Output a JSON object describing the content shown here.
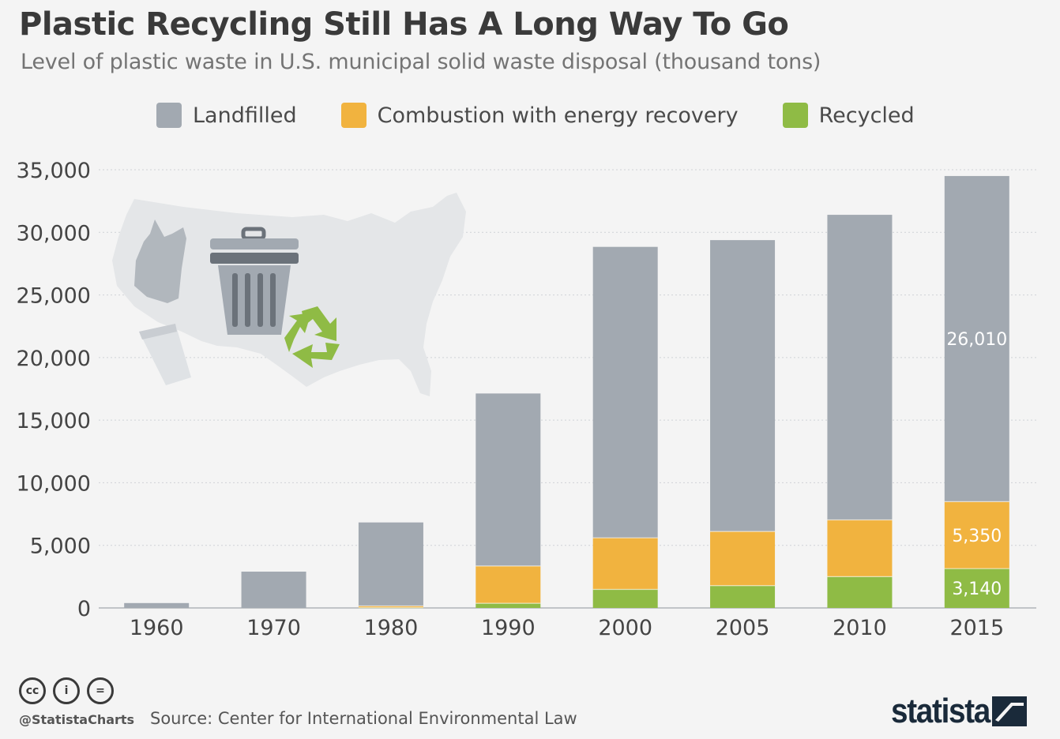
{
  "header": {
    "title": "Plastic Recycling Still Has A Long Way To Go",
    "subtitle": "Level of plastic waste in U.S. municipal solid waste disposal (thousand tons)"
  },
  "legend": [
    {
      "label": "Landfilled",
      "color": "#a2a9b1"
    },
    {
      "label": "Combustion with energy recovery",
      "color": "#f1b33f"
    },
    {
      "label": "Recycled",
      "color": "#8fbb45"
    }
  ],
  "chart_data": {
    "type": "bar",
    "stacked": true,
    "categories": [
      "1960",
      "1970",
      "1980",
      "1990",
      "2000",
      "2005",
      "2010",
      "2015"
    ],
    "series": [
      {
        "name": "Recycled",
        "color": "#8fbb45",
        "values": [
          0,
          0,
          20,
          370,
          1480,
          1780,
          2500,
          3140
        ]
      },
      {
        "name": "Combustion with energy recovery",
        "color": "#f1b33f",
        "values": [
          0,
          0,
          140,
          2980,
          4120,
          4330,
          4530,
          5350
        ]
      },
      {
        "name": "Landfilled",
        "color": "#a2a9b1",
        "values": [
          390,
          2900,
          6670,
          13780,
          23240,
          23270,
          24370,
          26010
        ]
      }
    ],
    "data_labels": [
      {
        "category": "2015",
        "series": "Landfilled",
        "text": "26,010"
      },
      {
        "category": "2015",
        "series": "Combustion with energy recovery",
        "text": "5,350"
      },
      {
        "category": "2015",
        "series": "Recycled",
        "text": "3,140"
      }
    ],
    "yticks": [
      "0",
      "5,000",
      "10,000",
      "15,000",
      "20,000",
      "25,000",
      "30,000",
      "35,000"
    ],
    "ylim": [
      0,
      35000
    ],
    "grid": true
  },
  "illustration": {
    "icons": [
      "usa-map-icon",
      "plastic-bag-icon",
      "trash-can-icon",
      "cup-icon",
      "recycle-icon"
    ]
  },
  "footer": {
    "license_icons": [
      "cc-icon",
      "by-icon",
      "nd-icon"
    ],
    "license_glyphs": [
      "cc",
      "i",
      "="
    ],
    "handle": "@StatistaCharts",
    "source": "Source: Center for International Environmental Law",
    "brand": "statista"
  }
}
